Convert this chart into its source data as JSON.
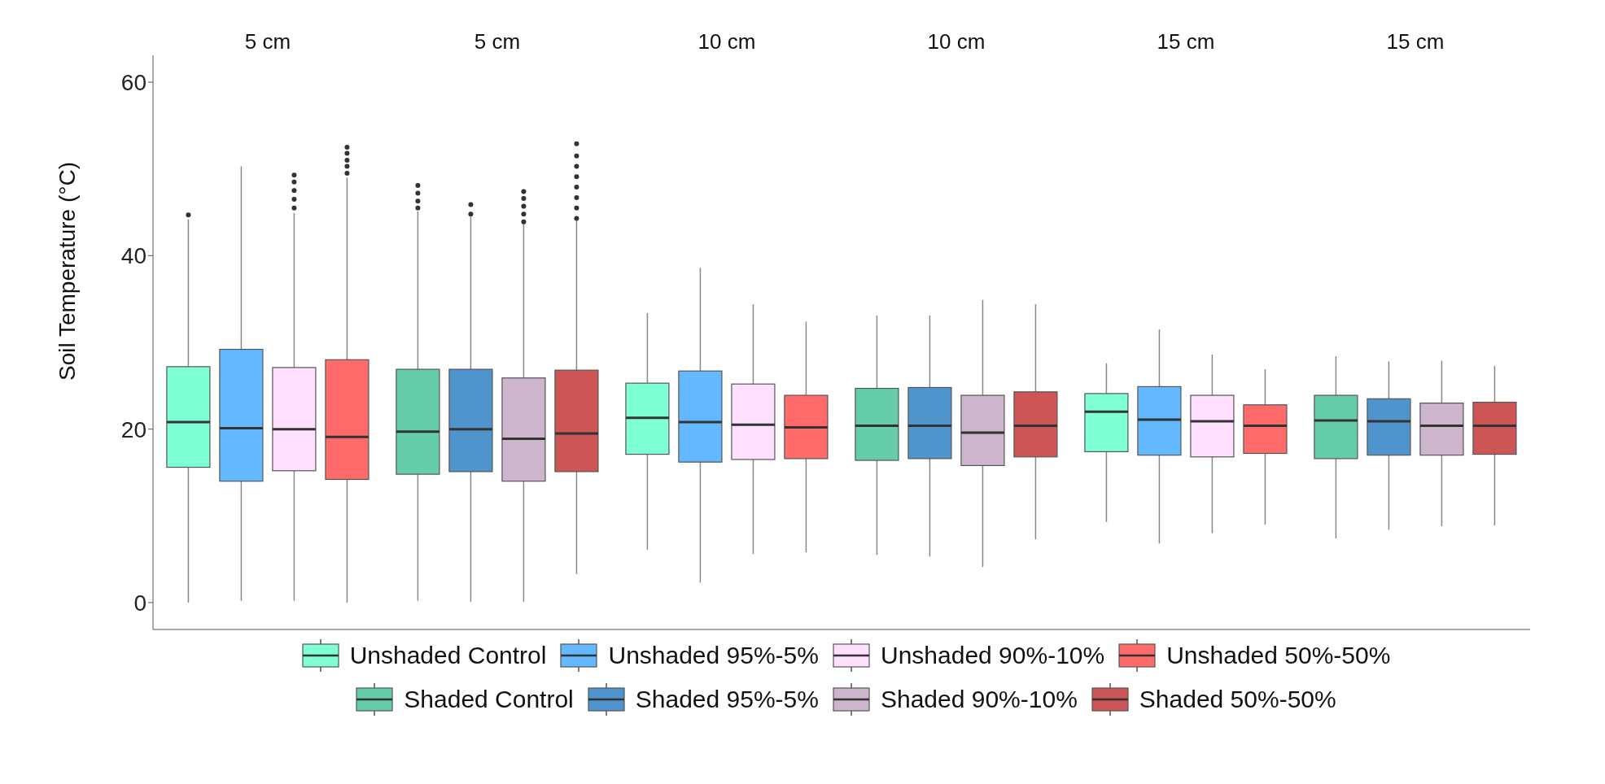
{
  "chart_data": {
    "type": "box",
    "ylabel": "Soil Temperature (°C)",
    "ylim": [
      -3.1,
      63.1
    ],
    "yticks": [
      0,
      20,
      40,
      60
    ],
    "legend": "bottom",
    "categories": [
      "5 cm",
      "5 cm",
      "10 cm",
      "10 cm",
      "15 cm",
      "15 cm"
    ],
    "series": [
      {
        "name": "Unshaded Control",
        "color": "#7fffd4",
        "boxes": [
          {
            "low": 0,
            "q1": 15.6,
            "median": 20.8,
            "q3": 27.2,
            "high": 44.2,
            "outliers": [
              44.7
            ]
          },
          null,
          {
            "low": 6.1,
            "q1": 17.1,
            "median": 21.3,
            "q3": 25.3,
            "high": 33.4
          },
          null,
          {
            "low": 9.3,
            "q1": 17.4,
            "median": 22.0,
            "q3": 24.1,
            "high": 27.6
          },
          null
        ]
      },
      {
        "name": "Unshaded 95%-5%",
        "color": "#63b8ff",
        "boxes": [
          {
            "low": 0.2,
            "q1": 14.0,
            "median": 20.1,
            "q3": 29.2,
            "high": 50.3
          },
          null,
          {
            "low": 2.3,
            "q1": 16.2,
            "median": 20.8,
            "q3": 26.7,
            "high": 38.6
          },
          null,
          {
            "low": 6.8,
            "q1": 17.0,
            "median": 21.1,
            "q3": 24.9,
            "high": 31.5
          },
          null
        ]
      },
      {
        "name": "Unshaded 90%-10%",
        "color": "#ffe1ff",
        "boxes": [
          {
            "low": 0.2,
            "q1": 15.2,
            "median": 20.0,
            "q3": 27.1,
            "high": 44.9,
            "outliers": [
              45.5,
              46.5,
              47.5,
              48.5,
              49.3
            ]
          },
          null,
          {
            "low": 5.6,
            "q1": 16.5,
            "median": 20.5,
            "q3": 25.2,
            "high": 34.4
          },
          null,
          {
            "low": 8.0,
            "q1": 16.8,
            "median": 20.9,
            "q3": 23.9,
            "high": 28.6
          },
          null
        ]
      },
      {
        "name": "Unshaded 50%-50%",
        "color": "#ff6a6a",
        "boxes": [
          {
            "low": 0,
            "q1": 14.2,
            "median": 19.1,
            "q3": 28.0,
            "high": 49.0,
            "outliers": [
              49.5,
              50.3,
              51.0,
              51.8,
              52.5
            ]
          },
          null,
          {
            "low": 5.8,
            "q1": 16.6,
            "median": 20.2,
            "q3": 23.9,
            "high": 32.4
          },
          null,
          {
            "low": 9.0,
            "q1": 17.2,
            "median": 20.4,
            "q3": 22.8,
            "high": 26.9
          },
          null
        ]
      },
      {
        "name": "Shaded Control",
        "color": "#66cdaa",
        "boxes": [
          null,
          {
            "low": 0.2,
            "q1": 14.8,
            "median": 19.7,
            "q3": 26.9,
            "high": 45.1,
            "outliers": [
              45.5,
              46.3,
              47.2,
              48.1
            ]
          },
          null,
          {
            "low": 5.5,
            "q1": 16.4,
            "median": 20.4,
            "q3": 24.7,
            "high": 33.1
          },
          null,
          {
            "low": 7.4,
            "q1": 16.6,
            "median": 21.0,
            "q3": 23.9,
            "high": 28.4
          }
        ]
      },
      {
        "name": "Shaded 95%-5%",
        "color": "#4f94cd",
        "boxes": [
          null,
          {
            "low": 0.1,
            "q1": 15.1,
            "median": 20.0,
            "q3": 26.9,
            "high": 44.5,
            "outliers": [
              44.8,
              45.9
            ]
          },
          null,
          {
            "low": 5.3,
            "q1": 16.6,
            "median": 20.4,
            "q3": 24.8,
            "high": 33.1
          },
          null,
          {
            "low": 8.4,
            "q1": 17.0,
            "median": 20.9,
            "q3": 23.5,
            "high": 27.8
          }
        ]
      },
      {
        "name": "Shaded 90%-10%",
        "color": "#cdb5cd",
        "boxes": [
          null,
          {
            "low": 0.1,
            "q1": 14.0,
            "median": 18.9,
            "q3": 25.9,
            "high": 43.7,
            "outliers": [
              43.9,
              44.8,
              45.7,
              46.6,
              47.4
            ]
          },
          null,
          {
            "low": 4.1,
            "q1": 15.8,
            "median": 19.6,
            "q3": 23.9,
            "high": 34.9
          },
          null,
          {
            "low": 8.8,
            "q1": 17.0,
            "median": 20.4,
            "q3": 23.0,
            "high": 27.9
          }
        ]
      },
      {
        "name": "Shaded 50%-50%",
        "color": "#cd5555",
        "boxes": [
          null,
          {
            "low": 3.3,
            "q1": 15.1,
            "median": 19.5,
            "q3": 26.8,
            "high": 44.1,
            "outliers": [
              44.3,
              45.5,
              46.7,
              47.9,
              49.1,
              50.3,
              51.5,
              52.9
            ]
          },
          null,
          {
            "low": 7.3,
            "q1": 16.8,
            "median": 20.4,
            "q3": 24.3,
            "high": 34.4
          },
          null,
          {
            "low": 8.9,
            "q1": 17.1,
            "median": 20.4,
            "q3": 23.1,
            "high": 27.3
          }
        ]
      }
    ]
  }
}
